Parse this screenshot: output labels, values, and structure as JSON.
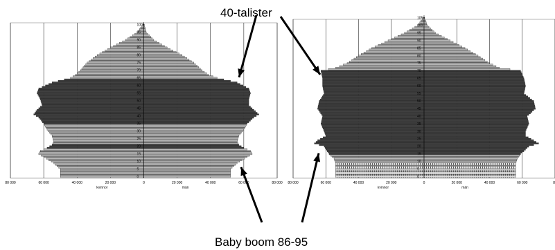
{
  "annotations": {
    "top": "40-talister",
    "bottom": "Baby boom 86-95"
  },
  "chart_data": [
    {
      "type": "bar",
      "orientation": "horizontal-population-pyramid",
      "xlabel_left": "kvinnor",
      "xlabel_right": "män",
      "x_tick_labels": [
        "80 000",
        "60 000",
        "40 000",
        "20 000",
        "0",
        "20 000",
        "40 000",
        "60 000",
        "80 000"
      ],
      "xlim": [
        -80000,
        80000
      ],
      "grid": true,
      "age_tick_labels": [
        "100+",
        "95",
        "90",
        "85",
        "80",
        "75",
        "70",
        "65",
        "60",
        "55",
        "50",
        "45",
        "40",
        "35",
        "30",
        "25",
        "20",
        "15",
        "10",
        "5",
        "0"
      ],
      "age_range": [
        0,
        100
      ],
      "colors": {
        "light": "#b8b8b8",
        "dark": "#404040",
        "edge": "#1a1a1a"
      },
      "dark_bands": [
        [
          19,
          21
        ],
        [
          35,
          64
        ]
      ],
      "shape_points": {
        "age": [
          0,
          5,
          9,
          13,
          15,
          17,
          19,
          21,
          23,
          27,
          31,
          35,
          39,
          41,
          44,
          47,
          51,
          55,
          58,
          62,
          65,
          67,
          70,
          75,
          80,
          85,
          90,
          95,
          100
        ],
        "female": [
          -50000,
          -50000,
          -54000,
          -60000,
          -63000,
          -62000,
          -58000,
          -55000,
          -54000,
          -55000,
          -58000,
          -60000,
          -63000,
          -66000,
          -64000,
          -61000,
          -62000,
          -64000,
          -63000,
          -55000,
          -44000,
          -41000,
          -38000,
          -34000,
          -28000,
          -20000,
          -11000,
          -4000,
          -500
        ],
        "male": [
          52000,
          52000,
          56000,
          62000,
          65000,
          64000,
          60000,
          57000,
          56000,
          57000,
          60000,
          62000,
          66000,
          69000,
          66000,
          63000,
          63000,
          64000,
          63000,
          56000,
          44000,
          39000,
          35000,
          30000,
          23000,
          14000,
          6000,
          1500,
          300
        ]
      }
    },
    {
      "type": "bar",
      "orientation": "horizontal-population-pyramid",
      "xlabel_left": "kvinnor",
      "xlabel_right": "män",
      "x_tick_labels": [
        "80 000",
        "60 000",
        "40 000",
        "20 000",
        "0",
        "20 000",
        "40 000",
        "60 000",
        "80"
      ],
      "xlim": [
        -80000,
        80000
      ],
      "grid": true,
      "age_tick_labels": [
        "105+",
        "100",
        "95",
        "90",
        "85",
        "80",
        "75",
        "70",
        "65",
        "60",
        "55",
        "50",
        "45",
        "40",
        "35",
        "30",
        "25",
        "20",
        "15",
        "10",
        "5",
        "0"
      ],
      "age_range": [
        0,
        105
      ],
      "colors": {
        "light": "#b8b8b8",
        "dark": "#404040",
        "dotted": "#e2e2e2",
        "edge": "#1a1a1a"
      },
      "dark_bands": [
        [
          15,
          70
        ]
      ],
      "dotted_band": [
        0,
        9
      ],
      "shape_points": {
        "age": [
          0,
          5,
          9,
          12,
          15,
          20,
          22,
          24,
          27,
          30,
          35,
          40,
          45,
          50,
          55,
          60,
          65,
          70,
          72,
          75,
          80,
          85,
          90,
          95,
          100,
          105
        ],
        "female": [
          -54000,
          -54000,
          -54000,
          -55000,
          -58000,
          -61000,
          -67000,
          -65000,
          -60000,
          -61000,
          -63000,
          -62000,
          -65000,
          -64000,
          -61000,
          -62000,
          -62000,
          -63000,
          -54000,
          -47000,
          -40000,
          -32000,
          -22000,
          -12000,
          -4000,
          -500
        ],
        "male": [
          56000,
          56000,
          56000,
          57000,
          59000,
          64000,
          70000,
          67000,
          62000,
          62000,
          64000,
          63000,
          68000,
          67000,
          61000,
          62000,
          61000,
          59000,
          46000,
          40000,
          33000,
          25000,
          16000,
          7000,
          2000,
          300
        ]
      }
    }
  ]
}
